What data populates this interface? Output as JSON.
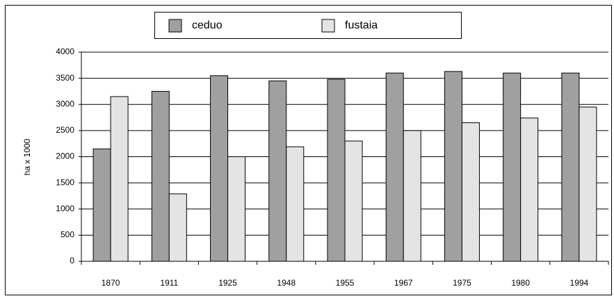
{
  "chart_data": {
    "type": "bar",
    "y_label": "ha x 1000",
    "categories": [
      "1870",
      "1911",
      "1925",
      "1948",
      "1955",
      "1967",
      "1975",
      "1980",
      "1994"
    ],
    "series": [
      {
        "name": "ceduo",
        "color": "#a0a0a0",
        "values": [
          2150,
          3250,
          3550,
          3450,
          3480,
          3600,
          3630,
          3600,
          3600
        ]
      },
      {
        "name": "fustaia",
        "color": "#e4e4e4",
        "values": [
          3150,
          1290,
          2000,
          2190,
          2300,
          2500,
          2650,
          2740,
          2950
        ]
      }
    ],
    "ylim": [
      0,
      4000
    ],
    "yticks": [
      0,
      500,
      1000,
      1500,
      2000,
      2500,
      3000,
      3500,
      4000
    ],
    "grid": true
  }
}
